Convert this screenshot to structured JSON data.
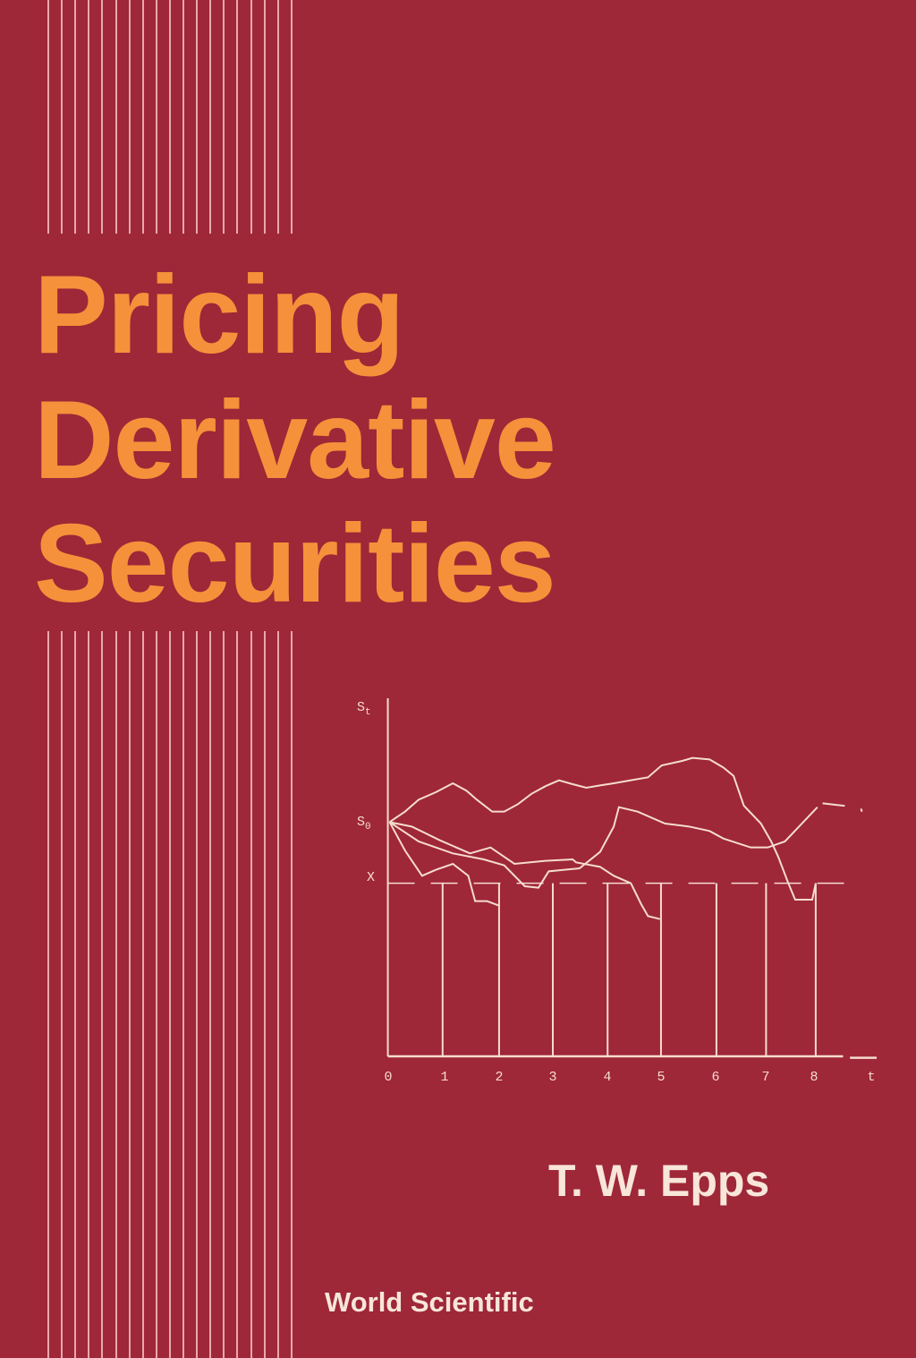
{
  "cover": {
    "background_color": "#9e2738",
    "title_color": "#f5913a",
    "title_lines": [
      "Pricing",
      "Derivative",
      "Securities"
    ],
    "author": "T. W. Epps",
    "publisher": "World Scientific"
  },
  "illustration": {
    "y_axis_label": "St",
    "start_label": "S0",
    "strike_label": "X",
    "x_axis_label": "t",
    "x_ticks": [
      "0",
      "1",
      "2",
      "3",
      "4",
      "5",
      "6",
      "7",
      "8"
    ]
  }
}
